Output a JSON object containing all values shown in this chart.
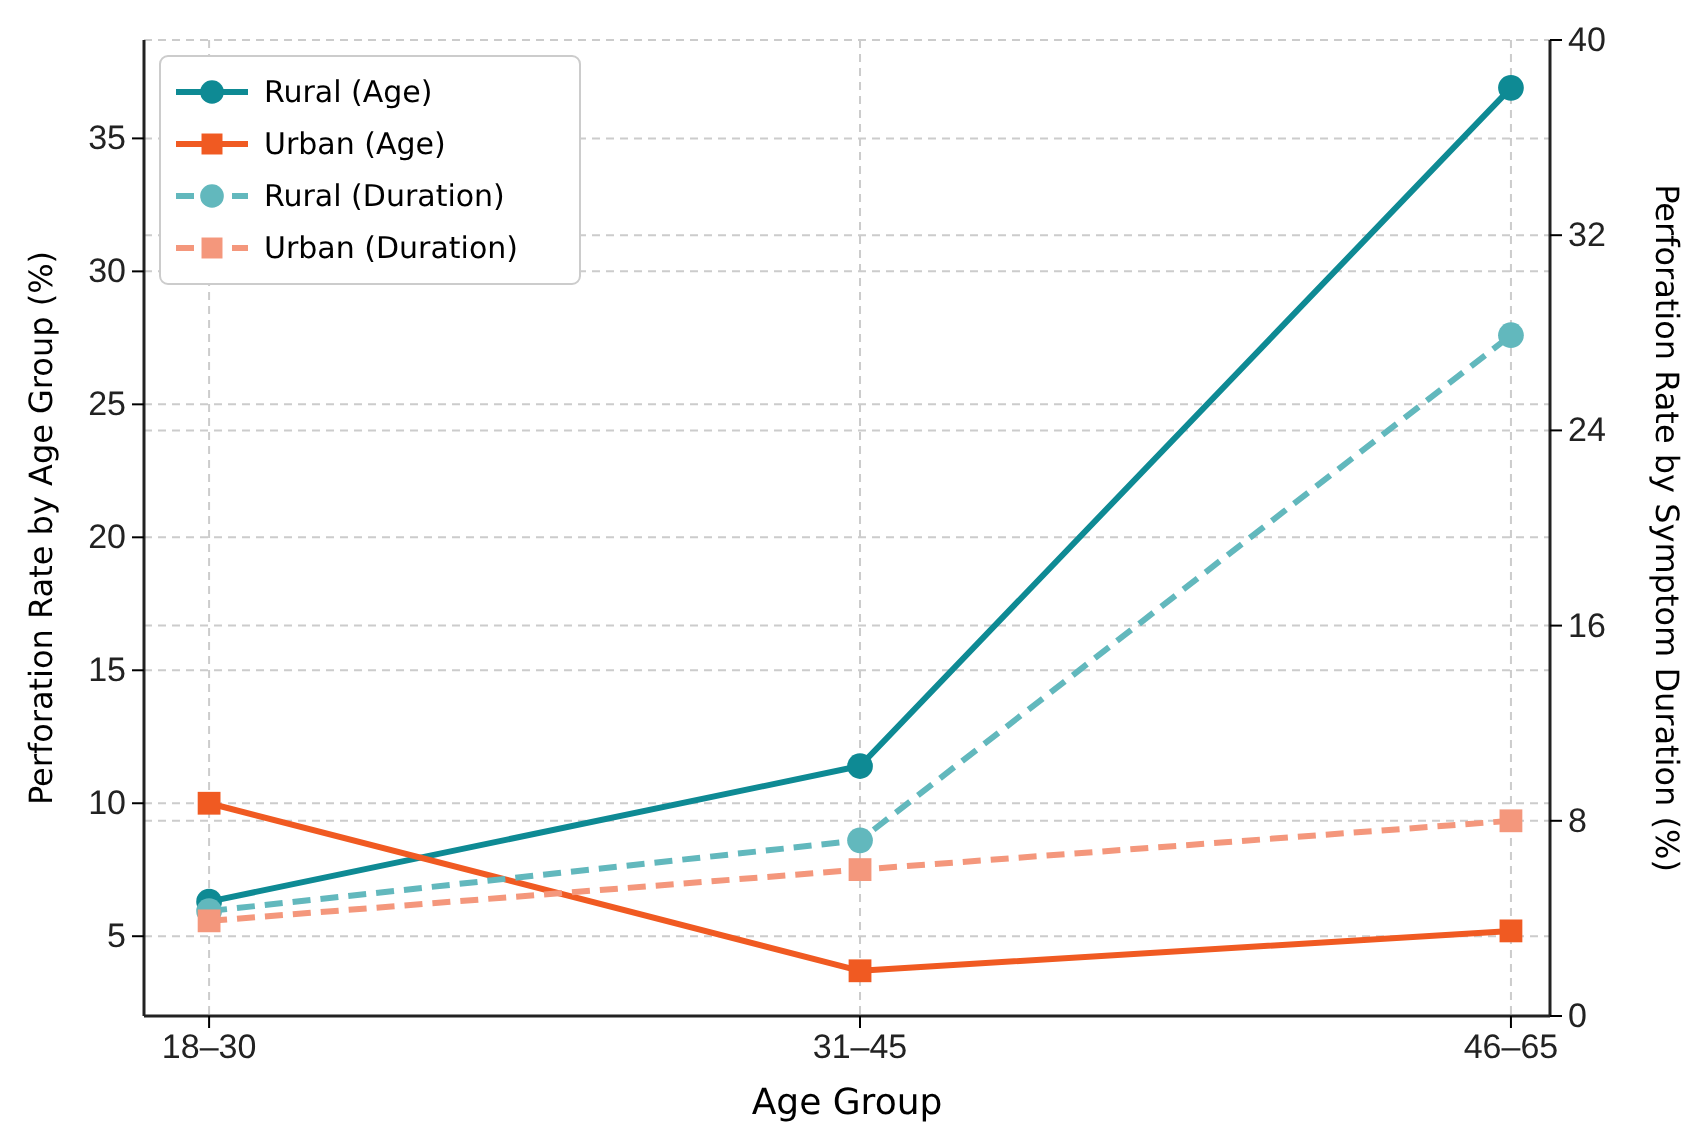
{
  "chart_data": {
    "type": "line",
    "xlabel": "Age Group",
    "ylabel": "Perforation Rate by Age Group (%)",
    "y2label": "Perforation Rate by Symptom Duration (%)",
    "categories": [
      "18–30",
      "31–45",
      "46–65"
    ],
    "series": [
      {
        "name": "Rural (Age)",
        "color": "#0e8a94",
        "values": [
          6.3,
          11.4,
          36.9
        ],
        "marker": "circle",
        "line_style": "solid"
      },
      {
        "name": "Urban (Age)",
        "color": "#f05a22",
        "values": [
          10.0,
          3.7,
          5.2
        ],
        "marker": "square",
        "line_style": "solid"
      },
      {
        "name": "Rural (Duration)",
        "color": "#62b8bd",
        "values": [
          4.3,
          7.2,
          27.9
        ],
        "marker": "circle",
        "line_style": "dashed",
        "axis": "y2"
      },
      {
        "name": "Urban (Duration)",
        "color": "#f4977c",
        "values": [
          3.9,
          6.0,
          8.0
        ],
        "marker": "square",
        "line_style": "dashed",
        "axis": "y2"
      }
    ],
    "ylim": [
      2,
      38.7
    ],
    "yticks": [
      5,
      10,
      15,
      20,
      25,
      30,
      35
    ],
    "y2lim": [
      0,
      40
    ],
    "y2ticks": [
      0,
      8,
      16,
      24,
      32,
      40
    ],
    "grid": true,
    "legend": "top left"
  }
}
